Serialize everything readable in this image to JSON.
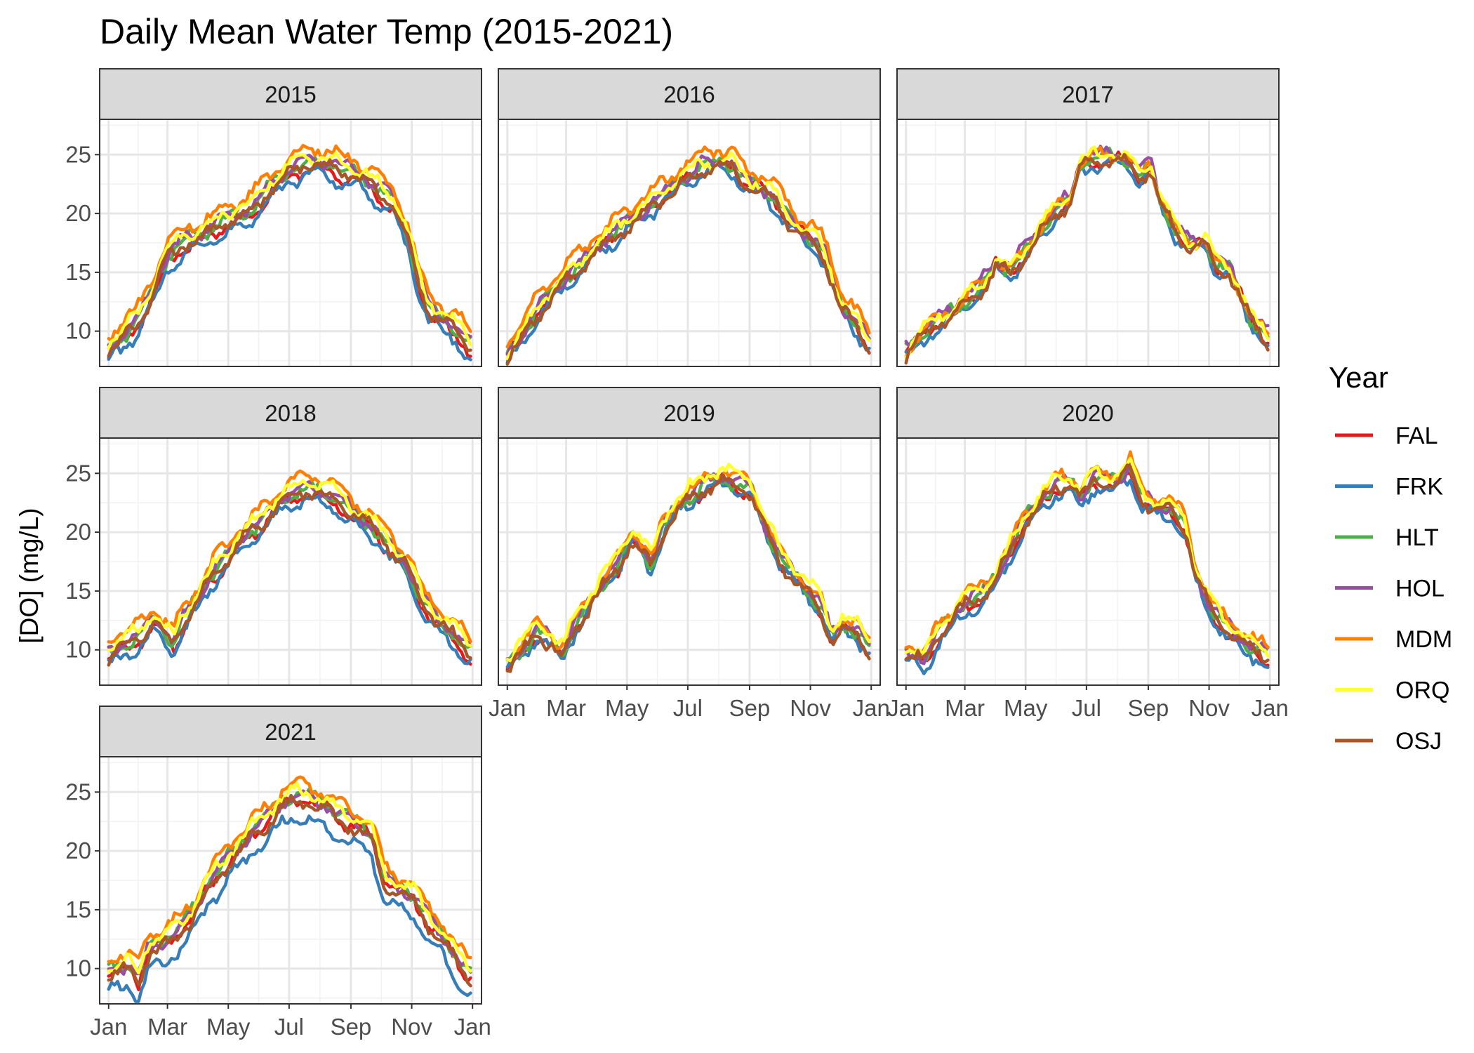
{
  "chart_data": {
    "type": "line",
    "title": "Daily Mean Water Temp (2015-2021)",
    "xlabel": "",
    "ylabel": "[DO] (mg/L)",
    "x_ticks": [
      "Jan",
      "Mar",
      "May",
      "Jul",
      "Sep",
      "Nov",
      "Jan"
    ],
    "y_ticks": [
      10,
      15,
      20,
      25
    ],
    "ylim": [
      7,
      28
    ],
    "grid": true,
    "legend": {
      "title": "Year",
      "position": "right",
      "entries": [
        {
          "name": "FAL",
          "color": "#e41a1c"
        },
        {
          "name": "FRK",
          "color": "#377eb8"
        },
        {
          "name": "HLT",
          "color": "#4daf4a"
        },
        {
          "name": "HOL",
          "color": "#984ea3"
        },
        {
          "name": "MDM",
          "color": "#ff7f00"
        },
        {
          "name": "ORQ",
          "color": "#ffff33"
        },
        {
          "name": "OSJ",
          "color": "#a65628"
        }
      ]
    },
    "panels": [
      {
        "label": "2015",
        "profile": [
          [
            0,
            8.5
          ],
          [
            15,
            9.5
          ],
          [
            30,
            11.0
          ],
          [
            45,
            13.5
          ],
          [
            60,
            16.5
          ],
          [
            75,
            17.5
          ],
          [
            90,
            18.0
          ],
          [
            105,
            18.8
          ],
          [
            120,
            19.5
          ],
          [
            135,
            20.0
          ],
          [
            150,
            21.0
          ],
          [
            165,
            22.5
          ],
          [
            180,
            23.5
          ],
          [
            195,
            24.2
          ],
          [
            210,
            24.3
          ],
          [
            225,
            24.0
          ],
          [
            240,
            23.5
          ],
          [
            255,
            23.0
          ],
          [
            270,
            22.0
          ],
          [
            285,
            21.0
          ],
          [
            300,
            18.0
          ],
          [
            310,
            14.5
          ],
          [
            320,
            12.0
          ],
          [
            335,
            11.0
          ],
          [
            350,
            10.0
          ],
          [
            365,
            8.5
          ]
        ],
        "offsets": {
          "FAL": -0.5,
          "FRK": -1.0,
          "HLT": 0.1,
          "HOL": 0.3,
          "MDM": 1.2,
          "ORQ": 0.6,
          "OSJ": -0.2
        }
      },
      {
        "label": "2016",
        "profile": [
          [
            0,
            7.8
          ],
          [
            15,
            9.5
          ],
          [
            30,
            11.5
          ],
          [
            45,
            13.0
          ],
          [
            60,
            14.5
          ],
          [
            75,
            15.5
          ],
          [
            90,
            17.0
          ],
          [
            105,
            18.0
          ],
          [
            120,
            19.0
          ],
          [
            135,
            20.0
          ],
          [
            150,
            21.0
          ],
          [
            165,
            22.0
          ],
          [
            180,
            23.0
          ],
          [
            195,
            23.8
          ],
          [
            210,
            24.2
          ],
          [
            225,
            24.0
          ],
          [
            240,
            22.5
          ],
          [
            255,
            22.0
          ],
          [
            270,
            21.0
          ],
          [
            285,
            19.0
          ],
          [
            300,
            18.0
          ],
          [
            310,
            17.5
          ],
          [
            320,
            16.0
          ],
          [
            335,
            12.0
          ],
          [
            350,
            10.5
          ],
          [
            365,
            8.5
          ]
        ],
        "offsets": {
          "FAL": 0.0,
          "FRK": -0.5,
          "HLT": 0.2,
          "HOL": 0.3,
          "MDM": 1.3,
          "ORQ": 0.5,
          "OSJ": -0.2
        }
      },
      {
        "label": "2017",
        "profile": [
          [
            0,
            8.0
          ],
          [
            15,
            9.5
          ],
          [
            30,
            10.5
          ],
          [
            45,
            11.5
          ],
          [
            60,
            12.5
          ],
          [
            75,
            13.5
          ],
          [
            90,
            15.5
          ],
          [
            105,
            15.0
          ],
          [
            120,
            16.5
          ],
          [
            135,
            18.5
          ],
          [
            150,
            20.0
          ],
          [
            165,
            21.0
          ],
          [
            175,
            24.0
          ],
          [
            190,
            24.5
          ],
          [
            205,
            24.6
          ],
          [
            220,
            24.5
          ],
          [
            235,
            23.0
          ],
          [
            245,
            24.0
          ],
          [
            255,
            21.0
          ],
          [
            270,
            18.5
          ],
          [
            285,
            17.0
          ],
          [
            300,
            17.5
          ],
          [
            310,
            15.5
          ],
          [
            325,
            15.0
          ],
          [
            345,
            11.0
          ],
          [
            365,
            9.0
          ]
        ],
        "offsets": {
          "FAL": 0.0,
          "FRK": -0.4,
          "HLT": 0.2,
          "HOL": 0.6,
          "MDM": 0.4,
          "ORQ": 0.5,
          "OSJ": -0.1
        }
      },
      {
        "label": "2018",
        "profile": [
          [
            0,
            9.5
          ],
          [
            15,
            10.5
          ],
          [
            30,
            11.0
          ],
          [
            45,
            12.5
          ],
          [
            55,
            11.5
          ],
          [
            65,
            10.5
          ],
          [
            75,
            12.5
          ],
          [
            90,
            14.5
          ],
          [
            105,
            16.5
          ],
          [
            120,
            18.0
          ],
          [
            135,
            19.5
          ],
          [
            150,
            20.5
          ],
          [
            165,
            22.0
          ],
          [
            180,
            23.0
          ],
          [
            195,
            23.5
          ],
          [
            210,
            23.5
          ],
          [
            225,
            23.0
          ],
          [
            240,
            22.0
          ],
          [
            255,
            21.0
          ],
          [
            270,
            20.0
          ],
          [
            285,
            18.5
          ],
          [
            300,
            17.0
          ],
          [
            315,
            14.0
          ],
          [
            330,
            12.5
          ],
          [
            350,
            11.0
          ],
          [
            365,
            9.5
          ]
        ],
        "offsets": {
          "FAL": -0.4,
          "FRK": -0.9,
          "HLT": 0.1,
          "HOL": 0.3,
          "MDM": 1.1,
          "ORQ": 0.6,
          "OSJ": -0.1
        }
      },
      {
        "label": "2019",
        "profile": [
          [
            0,
            8.5
          ],
          [
            15,
            10.0
          ],
          [
            30,
            11.5
          ],
          [
            45,
            10.5
          ],
          [
            55,
            9.5
          ],
          [
            65,
            11.5
          ],
          [
            80,
            13.5
          ],
          [
            95,
            15.5
          ],
          [
            110,
            17.0
          ],
          [
            125,
            19.5
          ],
          [
            135,
            18.5
          ],
          [
            145,
            17.0
          ],
          [
            155,
            20.0
          ],
          [
            170,
            22.0
          ],
          [
            185,
            23.0
          ],
          [
            200,
            24.0
          ],
          [
            215,
            24.5
          ],
          [
            230,
            24.0
          ],
          [
            245,
            23.5
          ],
          [
            260,
            20.0
          ],
          [
            275,
            17.5
          ],
          [
            290,
            16.0
          ],
          [
            300,
            15.0
          ],
          [
            315,
            13.5
          ],
          [
            325,
            11.0
          ],
          [
            335,
            12.0
          ],
          [
            350,
            11.5
          ],
          [
            365,
            9.8
          ]
        ],
        "offsets": {
          "FAL": -0.2,
          "FRK": -0.4,
          "HLT": 0.1,
          "HOL": 0.4,
          "MDM": 0.7,
          "ORQ": 0.9,
          "OSJ": -0.2
        }
      },
      {
        "label": "2020",
        "profile": [
          [
            0,
            9.5
          ],
          [
            10,
            9.5
          ],
          [
            20,
            9.0
          ],
          [
            30,
            11.0
          ],
          [
            45,
            12.5
          ],
          [
            60,
            14.0
          ],
          [
            75,
            14.5
          ],
          [
            90,
            16.0
          ],
          [
            105,
            18.5
          ],
          [
            120,
            21.0
          ],
          [
            135,
            22.5
          ],
          [
            150,
            24.0
          ],
          [
            165,
            24.0
          ],
          [
            175,
            23.0
          ],
          [
            190,
            24.5
          ],
          [
            205,
            24.0
          ],
          [
            215,
            24.5
          ],
          [
            225,
            25.5
          ],
          [
            235,
            23.0
          ],
          [
            250,
            22.0
          ],
          [
            265,
            22.0
          ],
          [
            280,
            20.5
          ],
          [
            290,
            16.5
          ],
          [
            305,
            13.5
          ],
          [
            320,
            12.0
          ],
          [
            340,
            10.5
          ],
          [
            365,
            9.3
          ]
        ],
        "offsets": {
          "FAL": -0.3,
          "FRK": -0.7,
          "HLT": 0.2,
          "HOL": 0.3,
          "MDM": 0.8,
          "ORQ": 0.6,
          "OSJ": -0.1
        }
      },
      {
        "label": "2021",
        "profile": [
          [
            0,
            9.5
          ],
          [
            10,
            9.8
          ],
          [
            20,
            10.0
          ],
          [
            30,
            9.0
          ],
          [
            40,
            11.5
          ],
          [
            55,
            12.0
          ],
          [
            70,
            13.0
          ],
          [
            85,
            14.5
          ],
          [
            100,
            17.0
          ],
          [
            115,
            18.5
          ],
          [
            130,
            20.0
          ],
          [
            145,
            21.5
          ],
          [
            160,
            22.5
          ],
          [
            175,
            24.0
          ],
          [
            190,
            24.5
          ],
          [
            205,
            24.0
          ],
          [
            220,
            23.5
          ],
          [
            235,
            22.5
          ],
          [
            250,
            22.0
          ],
          [
            265,
            21.0
          ],
          [
            275,
            17.5
          ],
          [
            290,
            16.5
          ],
          [
            305,
            16.0
          ],
          [
            320,
            14.0
          ],
          [
            335,
            12.5
          ],
          [
            350,
            10.5
          ],
          [
            365,
            9.0
          ]
        ],
        "offsets": {
          "FAL": 0.0,
          "FRK": -1.5,
          "HLT": 0.5,
          "HOL": 0.3,
          "MDM": 1.3,
          "ORQ": 0.7,
          "OSJ": -0.2
        }
      }
    ]
  }
}
